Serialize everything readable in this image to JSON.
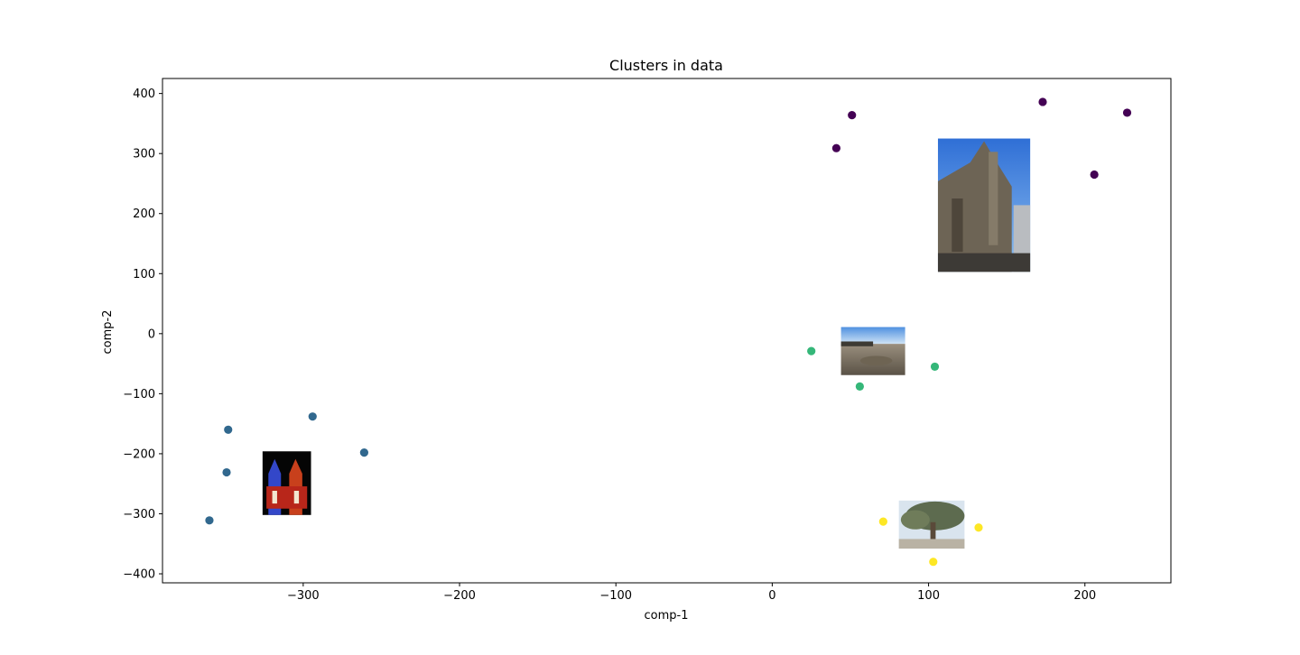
{
  "chart_data": {
    "type": "scatter",
    "title": "Clusters in data",
    "xlabel": "comp-1",
    "ylabel": "comp-2",
    "xlim": [
      -390,
      255
    ],
    "ylim": [
      -415,
      425
    ],
    "xticks": [
      -300,
      -200,
      -100,
      0,
      100,
      200
    ],
    "yticks": [
      -400,
      -300,
      -200,
      -100,
      0,
      100,
      200,
      300,
      400
    ],
    "grid": false,
    "legend": "none",
    "series": [
      {
        "color": "#440154",
        "points": [
          {
            "x": 41,
            "y": 309
          },
          {
            "x": 51,
            "y": 364
          },
          {
            "x": 173,
            "y": 386
          },
          {
            "x": 206,
            "y": 265
          },
          {
            "x": 227,
            "y": 368
          }
        ]
      },
      {
        "color": "#31688e",
        "points": [
          {
            "x": -348,
            "y": -160
          },
          {
            "x": -294,
            "y": -138
          },
          {
            "x": -261,
            "y": -198
          },
          {
            "x": -349,
            "y": -231
          },
          {
            "x": -360,
            "y": -311
          }
        ]
      },
      {
        "color": "#35b779",
        "points": [
          {
            "x": 25,
            "y": -29
          },
          {
            "x": 56,
            "y": -88
          },
          {
            "x": 104,
            "y": -55
          }
        ]
      },
      {
        "color": "#fde725",
        "points": [
          {
            "x": 71,
            "y": -313
          },
          {
            "x": 103,
            "y": -380
          },
          {
            "x": 132,
            "y": -323
          }
        ]
      }
    ],
    "image_thumbnails": [
      {
        "x0": 106,
        "x1": 165,
        "y0": 103,
        "y1": 325,
        "scene": "cathedral-facade-photo"
      },
      {
        "x0": 44,
        "x1": 85,
        "y0": -69,
        "y1": 11,
        "scene": "rocky-ground-blue-sky-photo"
      },
      {
        "x0": -326,
        "x1": -295,
        "y0": -302,
        "y1": -196,
        "scene": "illuminated-cathedral-night-photo"
      },
      {
        "x0": 81,
        "x1": 123,
        "y0": -358,
        "y1": -278,
        "scene": "large-tree-plaza-photo"
      }
    ]
  }
}
